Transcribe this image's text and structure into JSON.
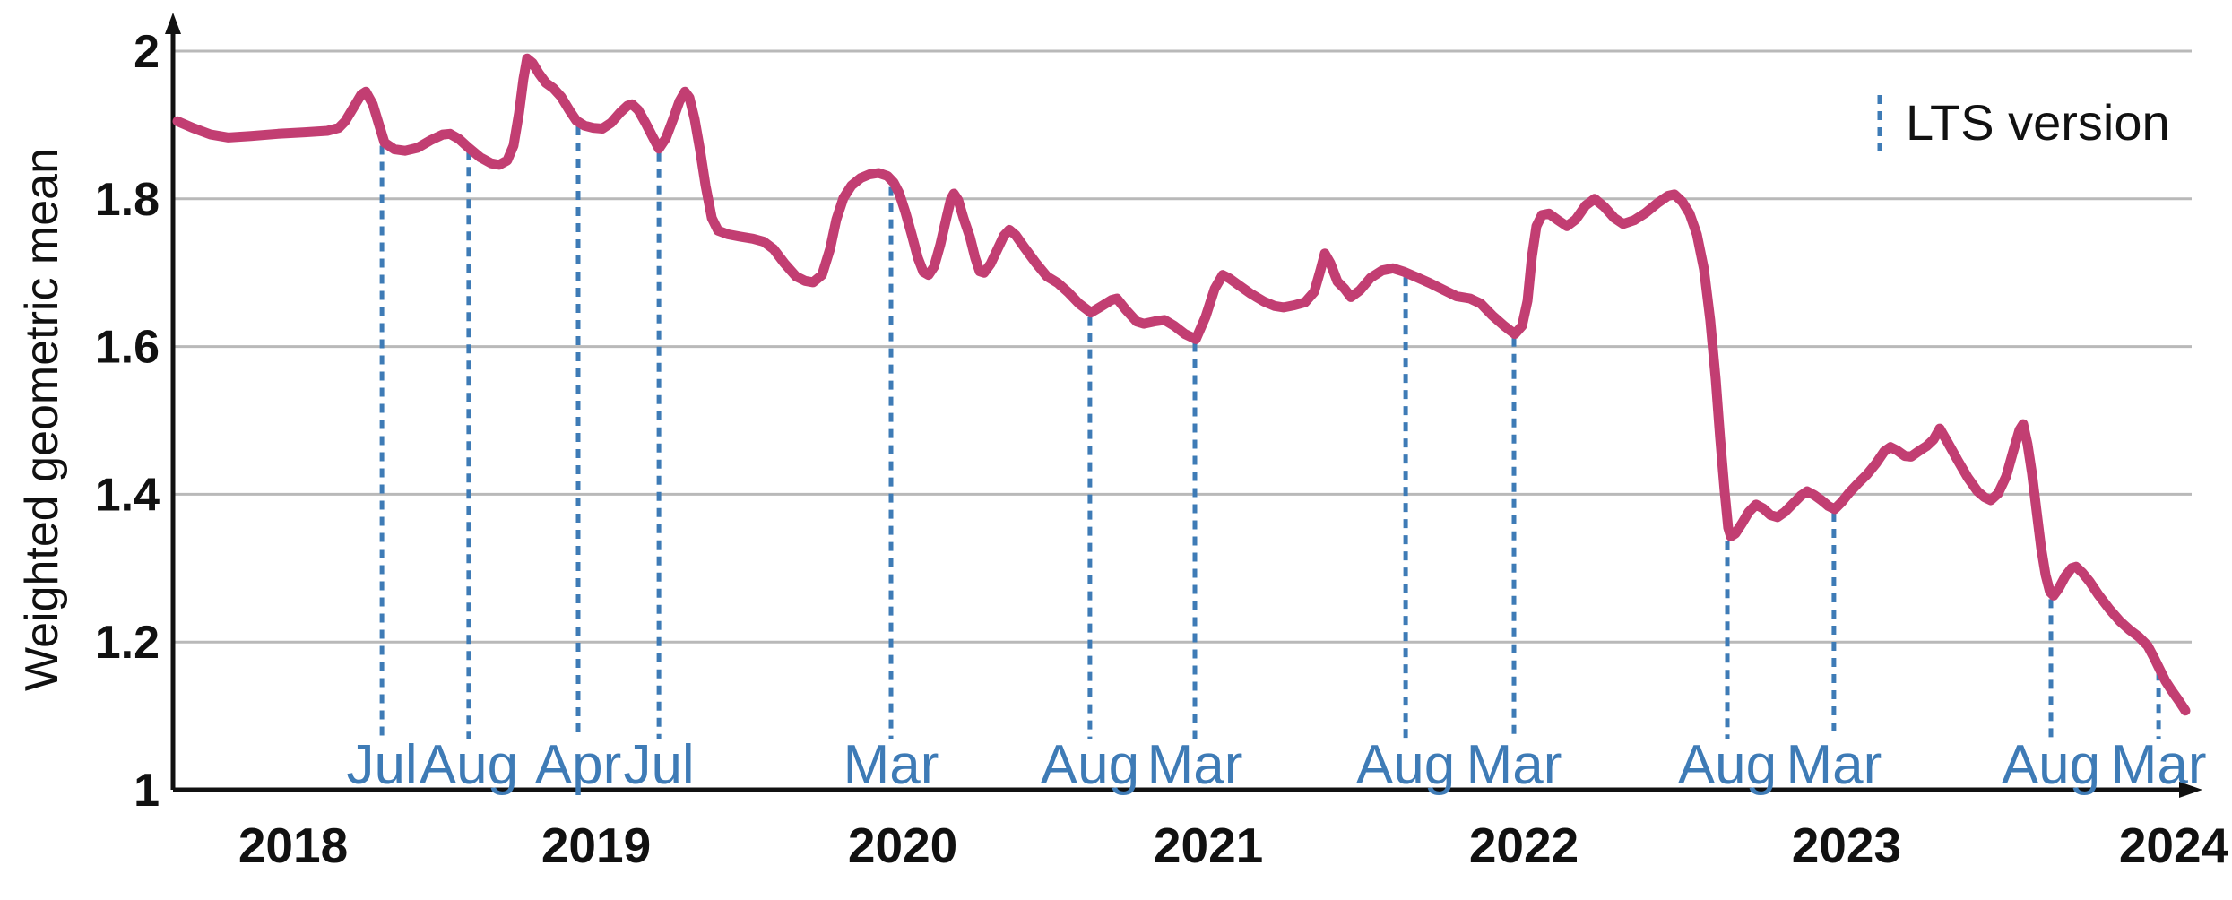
{
  "chart_data": {
    "type": "line",
    "title": "",
    "ylabel": "Weighted geometric mean",
    "xlabel": "",
    "grid": true,
    "legend_position": "top-right",
    "legend": {
      "label": "LTS version"
    },
    "colors": {
      "series": "#c23e72",
      "lts": "#3e7bb6",
      "grid": "#b9b9b9",
      "axis": "#111111"
    },
    "y_axis": {
      "min": 1,
      "max": 2,
      "ticks": [
        {
          "value": 2,
          "label": "2"
        },
        {
          "value": 1.8,
          "label": "1.8"
        },
        {
          "value": 1.6,
          "label": "1.6"
        },
        {
          "value": 1.4,
          "label": "1.4"
        },
        {
          "value": 1.2,
          "label": "1.2"
        },
        {
          "value": 1,
          "label": "1"
        }
      ],
      "gridline_values": [
        2,
        1.8,
        1.6,
        1.4,
        1.2
      ]
    },
    "x_axis": {
      "ticks": [
        {
          "label": "2018",
          "pos": 0.0595
        },
        {
          "label": "2019",
          "pos": 0.2096
        },
        {
          "label": "2020",
          "pos": 0.3615
        },
        {
          "label": "2021",
          "pos": 0.5129
        },
        {
          "label": "2022",
          "pos": 0.6692
        },
        {
          "label": "2023",
          "pos": 0.829
        },
        {
          "label": "2024",
          "pos": 0.9911
        }
      ]
    },
    "lts_markers": [
      {
        "label": "Jul",
        "pos": 0.1035,
        "top_value": 1.872
      },
      {
        "label": "Aug",
        "pos": 0.1465,
        "top_value": 1.865
      },
      {
        "label": "Apr",
        "pos": 0.2007,
        "top_value": 1.898
      },
      {
        "label": "Jul",
        "pos": 0.2407,
        "top_value": 1.862
      },
      {
        "label": "Mar",
        "pos": 0.3557,
        "top_value": 1.816
      },
      {
        "label": "Aug",
        "pos": 0.4542,
        "top_value": 1.64
      },
      {
        "label": "Mar",
        "pos": 0.5062,
        "top_value": 1.605
      },
      {
        "label": "Aug",
        "pos": 0.6106,
        "top_value": 1.694
      },
      {
        "label": "Mar",
        "pos": 0.6643,
        "top_value": 1.612
      },
      {
        "label": "Aug",
        "pos": 0.77,
        "top_value": 1.337
      },
      {
        "label": "Mar",
        "pos": 0.8228,
        "top_value": 1.375
      },
      {
        "label": "Aug",
        "pos": 0.9303,
        "top_value": 1.258
      },
      {
        "label": "Mar",
        "pos": 0.9836,
        "top_value": 1.16
      }
    ],
    "series": [
      {
        "name": "Weighted geometric mean",
        "points": [
          [
            0.0022,
            1.905
          ],
          [
            0.0098,
            1.896
          ],
          [
            0.0187,
            1.887
          ],
          [
            0.0275,
            1.883
          ],
          [
            0.0386,
            1.885
          ],
          [
            0.052,
            1.888
          ],
          [
            0.0653,
            1.89
          ],
          [
            0.0764,
            1.892
          ],
          [
            0.0821,
            1.896
          ],
          [
            0.0853,
            1.905
          ],
          [
            0.0897,
            1.925
          ],
          [
            0.0932,
            1.941
          ],
          [
            0.0955,
            1.945
          ],
          [
            0.099,
            1.928
          ],
          [
            0.1021,
            1.9
          ],
          [
            0.1048,
            1.876
          ],
          [
            0.1097,
            1.867
          ],
          [
            0.115,
            1.865
          ],
          [
            0.1212,
            1.869
          ],
          [
            0.1274,
            1.879
          ],
          [
            0.1336,
            1.887
          ],
          [
            0.1372,
            1.888
          ],
          [
            0.1417,
            1.881
          ],
          [
            0.1465,
            1.869
          ],
          [
            0.1523,
            1.856
          ],
          [
            0.1576,
            1.848
          ],
          [
            0.1616,
            1.846
          ],
          [
            0.1656,
            1.852
          ],
          [
            0.1687,
            1.872
          ],
          [
            0.1714,
            1.916
          ],
          [
            0.1736,
            1.962
          ],
          [
            0.1754,
            1.99
          ],
          [
            0.1781,
            1.984
          ],
          [
            0.1812,
            1.97
          ],
          [
            0.1847,
            1.957
          ],
          [
            0.1883,
            1.95
          ],
          [
            0.1923,
            1.938
          ],
          [
            0.1963,
            1.92
          ],
          [
            0.1998,
            1.906
          ],
          [
            0.2038,
            1.899
          ],
          [
            0.2082,
            1.896
          ],
          [
            0.2127,
            1.895
          ],
          [
            0.2171,
            1.903
          ],
          [
            0.2216,
            1.917
          ],
          [
            0.2251,
            1.926
          ],
          [
            0.2274,
            1.928
          ],
          [
            0.2305,
            1.92
          ],
          [
            0.234,
            1.903
          ],
          [
            0.2376,
            1.884
          ],
          [
            0.2407,
            1.868
          ],
          [
            0.2442,
            1.882
          ],
          [
            0.2478,
            1.908
          ],
          [
            0.2509,
            1.932
          ],
          [
            0.2536,
            1.945
          ],
          [
            0.2558,
            1.937
          ],
          [
            0.2584,
            1.908
          ],
          [
            0.2611,
            1.866
          ],
          [
            0.2638,
            1.818
          ],
          [
            0.2669,
            1.774
          ],
          [
            0.27,
            1.757
          ],
          [
            0.2749,
            1.752
          ],
          [
            0.2806,
            1.749
          ],
          [
            0.2873,
            1.746
          ],
          [
            0.2926,
            1.742
          ],
          [
            0.2975,
            1.732
          ],
          [
            0.3028,
            1.713
          ],
          [
            0.3086,
            1.695
          ],
          [
            0.3131,
            1.689
          ],
          [
            0.3171,
            1.687
          ],
          [
            0.3215,
            1.697
          ],
          [
            0.3255,
            1.732
          ],
          [
            0.3286,
            1.772
          ],
          [
            0.3321,
            1.801
          ],
          [
            0.3361,
            1.818
          ],
          [
            0.3406,
            1.828
          ],
          [
            0.345,
            1.833
          ],
          [
            0.3495,
            1.835
          ],
          [
            0.3539,
            1.831
          ],
          [
            0.357,
            1.822
          ],
          [
            0.3597,
            1.808
          ],
          [
            0.3628,
            1.782
          ],
          [
            0.3659,
            1.752
          ],
          [
            0.369,
            1.72
          ],
          [
            0.3717,
            1.701
          ],
          [
            0.3743,
            1.697
          ],
          [
            0.377,
            1.708
          ],
          [
            0.3801,
            1.738
          ],
          [
            0.3832,
            1.775
          ],
          [
            0.3854,
            1.8
          ],
          [
            0.3868,
            1.807
          ],
          [
            0.389,
            1.798
          ],
          [
            0.3917,
            1.773
          ],
          [
            0.3948,
            1.748
          ],
          [
            0.3974,
            1.72
          ],
          [
            0.3996,
            1.702
          ],
          [
            0.4018,
            1.7
          ],
          [
            0.405,
            1.712
          ],
          [
            0.4085,
            1.732
          ],
          [
            0.4116,
            1.75
          ],
          [
            0.4143,
            1.758
          ],
          [
            0.4174,
            1.751
          ],
          [
            0.4218,
            1.734
          ],
          [
            0.4272,
            1.714
          ],
          [
            0.4329,
            1.695
          ],
          [
            0.4383,
            1.686
          ],
          [
            0.4436,
            1.673
          ],
          [
            0.4489,
            1.658
          ],
          [
            0.4547,
            1.646
          ],
          [
            0.4596,
            1.654
          ],
          [
            0.4649,
            1.663
          ],
          [
            0.4676,
            1.665
          ],
          [
            0.472,
            1.65
          ],
          [
            0.4773,
            1.634
          ],
          [
            0.4809,
            1.631
          ],
          [
            0.4862,
            1.634
          ],
          [
            0.4911,
            1.636
          ],
          [
            0.496,
            1.628
          ],
          [
            0.5013,
            1.617
          ],
          [
            0.5067,
            1.61
          ],
          [
            0.5115,
            1.64
          ],
          [
            0.516,
            1.678
          ],
          [
            0.52,
            1.697
          ],
          [
            0.5235,
            1.692
          ],
          [
            0.528,
            1.683
          ],
          [
            0.5337,
            1.672
          ],
          [
            0.5404,
            1.661
          ],
          [
            0.5457,
            1.655
          ],
          [
            0.5502,
            1.653
          ],
          [
            0.5555,
            1.656
          ],
          [
            0.5608,
            1.66
          ],
          [
            0.5653,
            1.674
          ],
          [
            0.5684,
            1.703
          ],
          [
            0.5706,
            1.726
          ],
          [
            0.5733,
            1.713
          ],
          [
            0.5768,
            1.688
          ],
          [
            0.5804,
            1.678
          ],
          [
            0.5835,
            1.667
          ],
          [
            0.5879,
            1.676
          ],
          [
            0.5932,
            1.693
          ],
          [
            0.599,
            1.703
          ],
          [
            0.6043,
            1.706
          ],
          [
            0.6101,
            1.701
          ],
          [
            0.6159,
            1.694
          ],
          [
            0.6225,
            1.686
          ],
          [
            0.6292,
            1.677
          ],
          [
            0.6359,
            1.668
          ],
          [
            0.6425,
            1.665
          ],
          [
            0.6479,
            1.658
          ],
          [
            0.6536,
            1.642
          ],
          [
            0.6594,
            1.628
          ],
          [
            0.6647,
            1.617
          ],
          [
            0.6683,
            1.628
          ],
          [
            0.671,
            1.662
          ],
          [
            0.6732,
            1.722
          ],
          [
            0.6754,
            1.763
          ],
          [
            0.6781,
            1.778
          ],
          [
            0.6816,
            1.78
          ],
          [
            0.6861,
            1.771
          ],
          [
            0.6905,
            1.763
          ],
          [
            0.6949,
            1.772
          ],
          [
            0.6998,
            1.791
          ],
          [
            0.7042,
            1.8
          ],
          [
            0.7091,
            1.789
          ],
          [
            0.714,
            1.774
          ],
          [
            0.7184,
            1.766
          ],
          [
            0.7238,
            1.771
          ],
          [
            0.7295,
            1.781
          ],
          [
            0.7353,
            1.794
          ],
          [
            0.7406,
            1.804
          ],
          [
            0.7438,
            1.806
          ],
          [
            0.7477,
            1.796
          ],
          [
            0.7513,
            1.78
          ],
          [
            0.7549,
            1.752
          ],
          [
            0.7584,
            1.705
          ],
          [
            0.7615,
            1.636
          ],
          [
            0.7642,
            1.556
          ],
          [
            0.7664,
            1.477
          ],
          [
            0.7686,
            1.405
          ],
          [
            0.7704,
            1.355
          ],
          [
            0.7717,
            1.343
          ],
          [
            0.774,
            1.347
          ],
          [
            0.7771,
            1.36
          ],
          [
            0.7806,
            1.376
          ],
          [
            0.7842,
            1.386
          ],
          [
            0.7877,
            1.381
          ],
          [
            0.7913,
            1.372
          ],
          [
            0.7948,
            1.369
          ],
          [
            0.7984,
            1.376
          ],
          [
            0.8024,
            1.387
          ],
          [
            0.8064,
            1.398
          ],
          [
            0.8095,
            1.404
          ],
          [
            0.813,
            1.399
          ],
          [
            0.8166,
            1.392
          ],
          [
            0.8201,
            1.384
          ],
          [
            0.8232,
            1.38
          ],
          [
            0.8268,
            1.39
          ],
          [
            0.8303,
            1.402
          ],
          [
            0.8348,
            1.415
          ],
          [
            0.8392,
            1.427
          ],
          [
            0.8437,
            1.442
          ],
          [
            0.8477,
            1.458
          ],
          [
            0.8508,
            1.464
          ],
          [
            0.8543,
            1.459
          ],
          [
            0.8579,
            1.452
          ],
          [
            0.861,
            1.451
          ],
          [
            0.8646,
            1.458
          ],
          [
            0.8686,
            1.465
          ],
          [
            0.8721,
            1.474
          ],
          [
            0.8752,
            1.489
          ],
          [
            0.8792,
            1.47
          ],
          [
            0.8841,
            1.446
          ],
          [
            0.889,
            1.423
          ],
          [
            0.8939,
            1.404
          ],
          [
            0.8974,
            1.396
          ],
          [
            0.9005,
            1.392
          ],
          [
            0.9041,
            1.401
          ],
          [
            0.9081,
            1.424
          ],
          [
            0.9116,
            1.458
          ],
          [
            0.9147,
            1.487
          ],
          [
            0.9165,
            1.495
          ],
          [
            0.9187,
            1.468
          ],
          [
            0.9209,
            1.428
          ],
          [
            0.9232,
            1.377
          ],
          [
            0.9254,
            1.328
          ],
          [
            0.9276,
            1.291
          ],
          [
            0.9298,
            1.268
          ],
          [
            0.9316,
            1.263
          ],
          [
            0.9343,
            1.273
          ],
          [
            0.9374,
            1.289
          ],
          [
            0.9405,
            1.3
          ],
          [
            0.9427,
            1.302
          ],
          [
            0.9458,
            1.294
          ],
          [
            0.9494,
            1.282
          ],
          [
            0.9538,
            1.264
          ],
          [
            0.9591,
            1.245
          ],
          [
            0.9645,
            1.228
          ],
          [
            0.9694,
            1.216
          ],
          [
            0.9738,
            1.207
          ],
          [
            0.9782,
            1.195
          ],
          [
            0.9813,
            1.179
          ],
          [
            0.984,
            1.164
          ],
          [
            0.9871,
            1.147
          ],
          [
            0.9902,
            1.134
          ],
          [
            0.9938,
            1.12
          ],
          [
            0.9969,
            1.107
          ]
        ]
      }
    ]
  }
}
